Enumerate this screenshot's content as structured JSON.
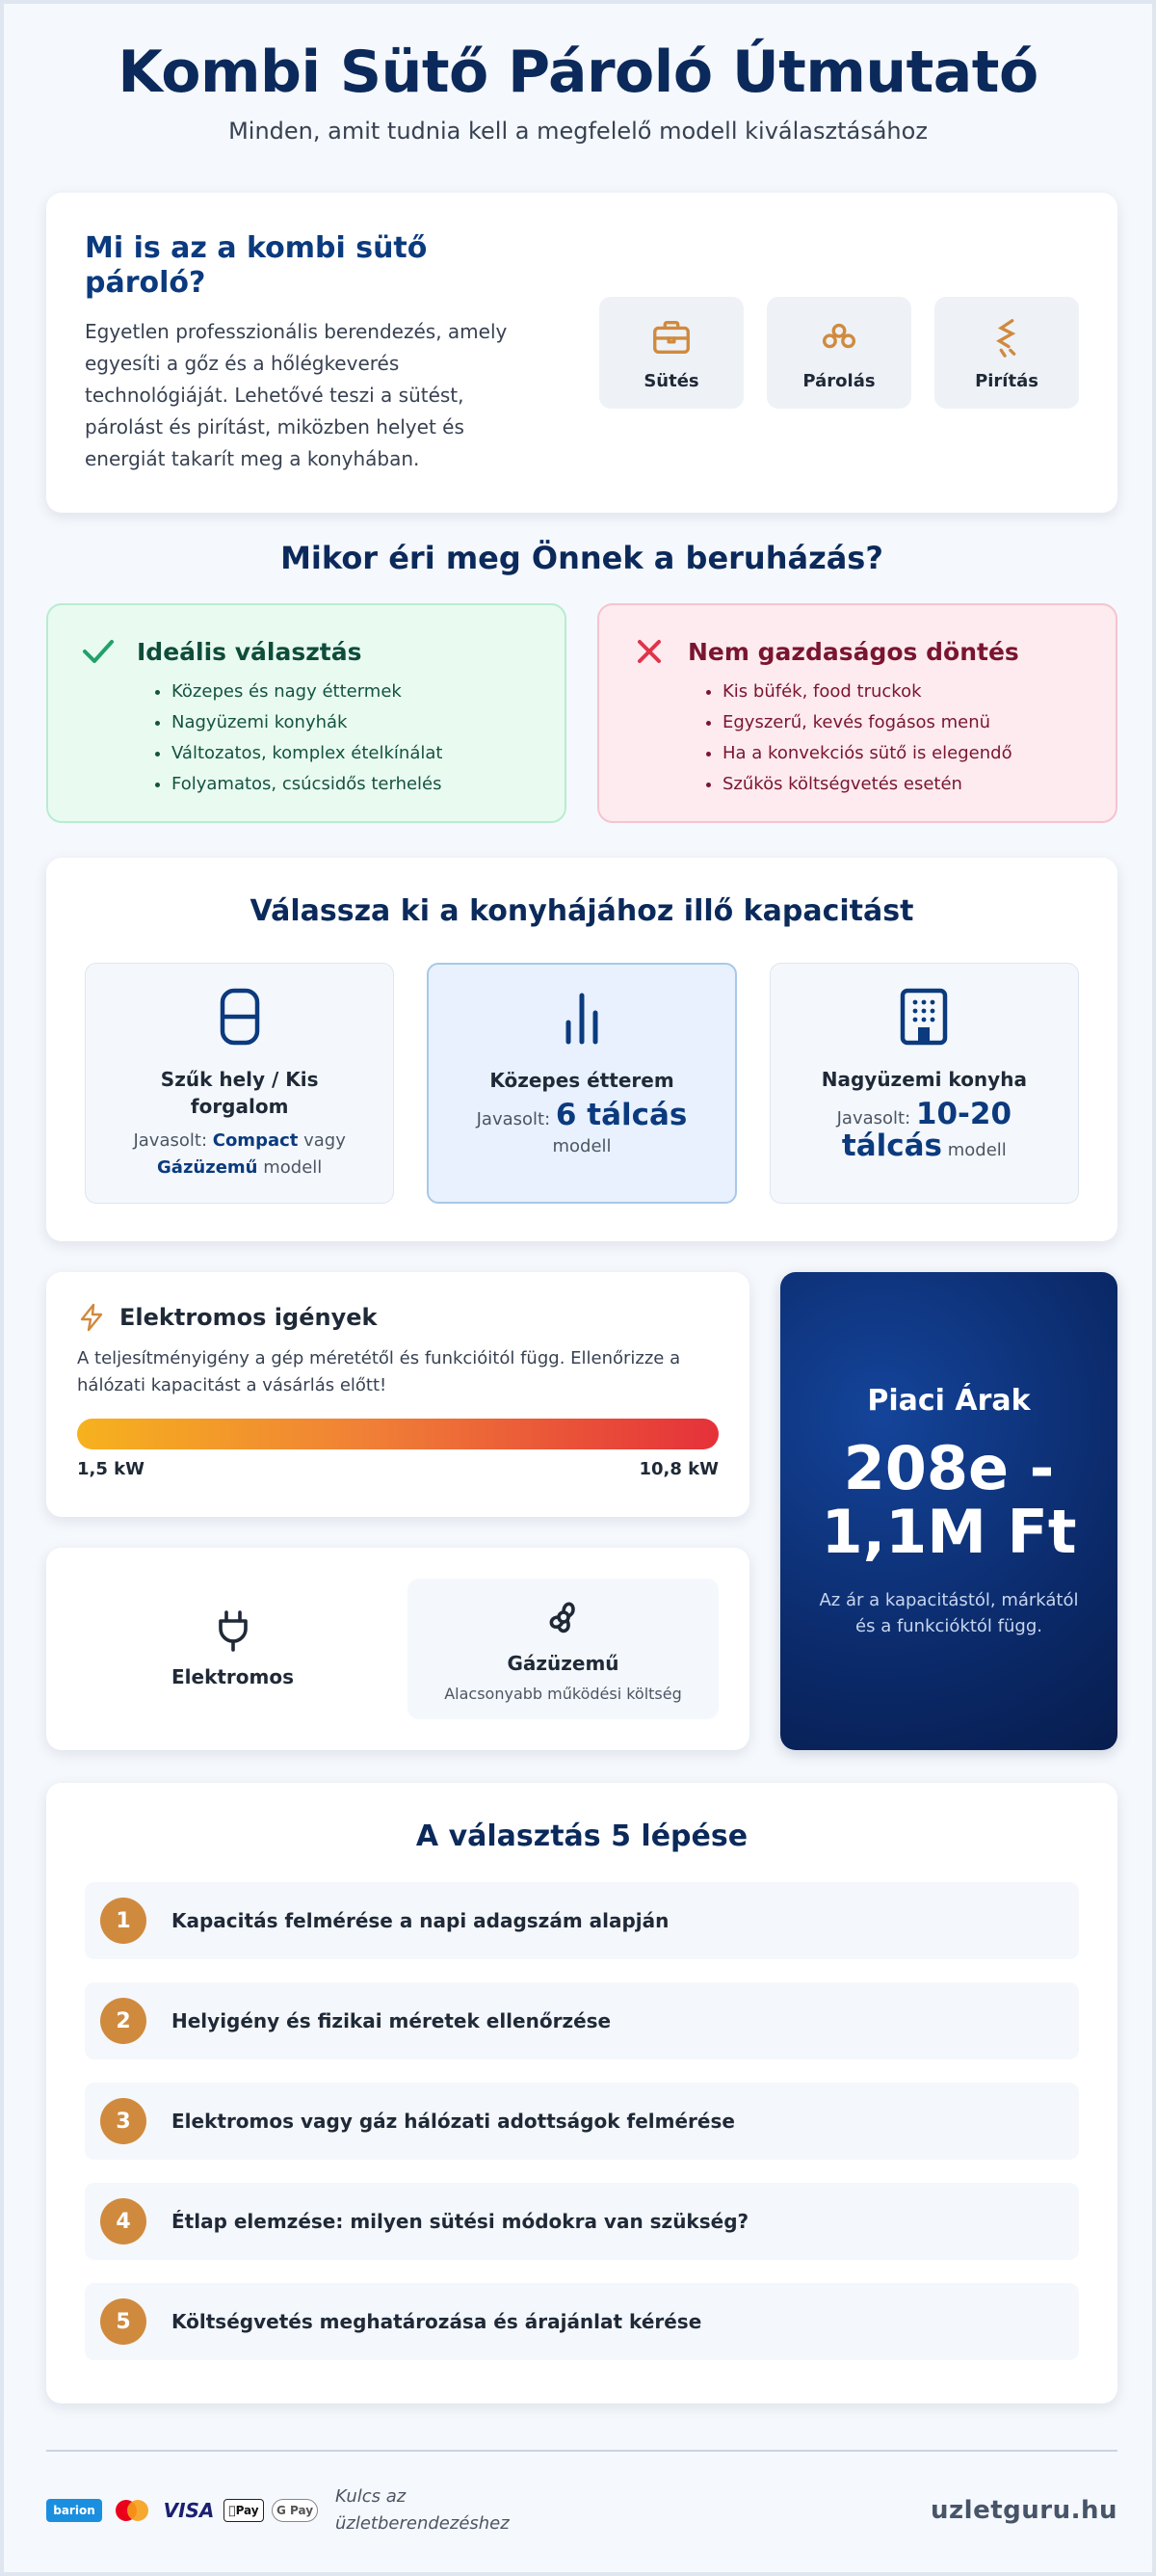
{
  "hero": {
    "title": "Kombi Sütő Pároló Útmutató",
    "subtitle": "Minden, amit tudnia kell a megfelelő modell kiválasztásához"
  },
  "intro": {
    "title": "Mi is az a kombi sütő pároló?",
    "text": "Egyetlen professzionális berendezés, amely egyesíti a gőz és a hőlégkeverés technológiáját. Lehetővé teszi a sütést, párolást és pirítást, miközben helyet és energiát takarít meg a konyhában.",
    "features": [
      {
        "label": "Sütés",
        "icon": "oven-icon"
      },
      {
        "label": "Párolás",
        "icon": "steam-icon"
      },
      {
        "label": "Pirítás",
        "icon": "toast-icon"
      }
    ]
  },
  "invest": {
    "title": "Mikor éri meg Önnek a beruházás?",
    "good": {
      "title": "Ideális választás",
      "icon": "check-icon",
      "items": [
        "Közepes és nagy éttermek",
        "Nagyüzemi konyhák",
        "Változatos, komplex ételkínálat",
        "Folyamatos, csúcsidős terhelés"
      ]
    },
    "bad": {
      "title": "Nem gazdaságos döntés",
      "icon": "x-icon",
      "items": [
        "Kis büfék, food truckok",
        "Egyszerű, kevés fogásos menü",
        "Ha a konvekciós sütő is elegendő",
        "Szűkös költségvetés esetén"
      ]
    }
  },
  "capacity": {
    "title": "Válassza ki a konyhájához illő kapacitást",
    "small": {
      "name": "Szűk hely / Kis forgalom",
      "rec_prefix": "Javasolt: ",
      "a": "Compact",
      "mid": " vagy ",
      "b": "Gázüzemű",
      "suffix": " modell"
    },
    "medium": {
      "name": "Közepes étterem",
      "rec_prefix": "Javasolt: ",
      "value": "6 tálcás",
      "suffix": " modell"
    },
    "large": {
      "name": "Nagyüzemi konyha",
      "rec_prefix": "Javasolt: ",
      "value": "10-20 tálcás",
      "suffix": " modell"
    }
  },
  "electric": {
    "title": "Elektromos igények",
    "text": "A teljesítményigény a gép méretétől és funkcióitól függ. Ellenőrizze a hálózati kapacitást a vásárlás előtt!",
    "min": "1,5 kW",
    "max": "10,8 kW"
  },
  "power": {
    "electric_label": "Elektromos",
    "gas_label": "Gázüzemű",
    "gas_note": "Alacsonyabb működési költség"
  },
  "price": {
    "title": "Piaci Árak",
    "value": "208e - 1,1M Ft",
    "note": "Az ár a kapacitástól, márkától és a funkcióktól függ."
  },
  "steps": {
    "title": "A választás 5 lépése",
    "items": [
      {
        "num": "1",
        "text": "Kapacitás felmérése a napi adagszám alapján"
      },
      {
        "num": "2",
        "text": "Helyigény és fizikai méretek ellenőrzése"
      },
      {
        "num": "3",
        "text": "Elektromos vagy gáz hálózati adottságok felmérése"
      },
      {
        "num": "4",
        "text": "Étlap elemzése: milyen sütési módokra van szükség?"
      },
      {
        "num": "5",
        "text": "Költségvetés meghatározása és árajánlat kérése"
      }
    ]
  },
  "footer": {
    "payments": {
      "barion": "barion",
      "visa": "VISA",
      "apple": "Pay",
      "gpay": "G Pay"
    },
    "tagline": "Kulcs az üzletberendezéshez",
    "brand": "uzletguru.hu"
  },
  "colors": {
    "navy": "#0b2a5b",
    "accent_orange": "#d08a3e",
    "good_green": "#22a06b",
    "bad_red": "#e0344a"
  }
}
